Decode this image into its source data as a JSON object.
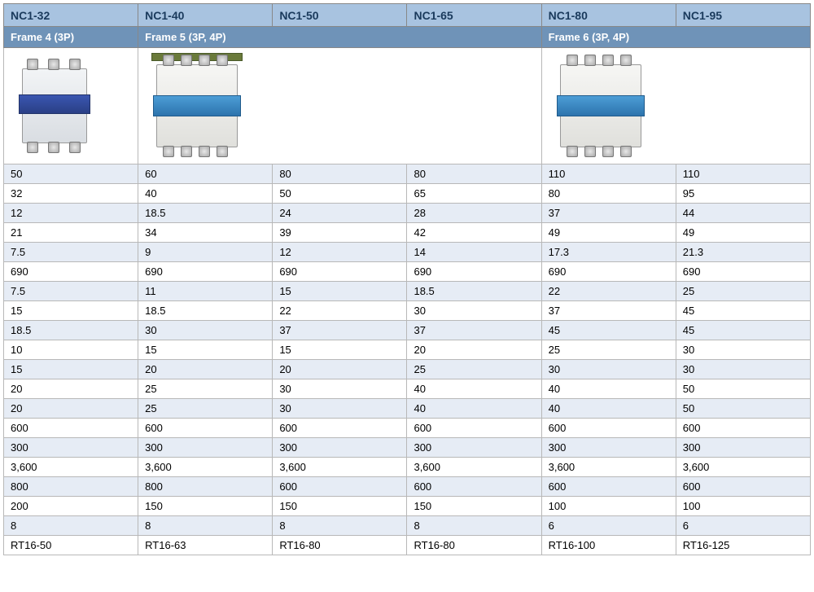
{
  "colors": {
    "model_header_bg": "#a8c3e0",
    "model_header_text": "#1a3a5c",
    "frame_header_bg": "#6f93b8",
    "frame_header_text": "#ffffff",
    "row_even_bg": "#e6ecf5",
    "row_odd_bg": "#ffffff",
    "border": "#b8b8b8"
  },
  "table": {
    "type": "table",
    "columns": 6,
    "font_size_pt": 10,
    "header_font_weight": "bold",
    "models": [
      "NC1-32",
      "NC1-40",
      "NC1-50",
      "NC1-65",
      "NC1-80",
      "NC1-95"
    ],
    "frames": [
      {
        "label": "Frame 4 (3P)",
        "span": 1
      },
      {
        "label": "Frame 5 (3P, 4P)",
        "span": 3
      },
      {
        "label": "Frame 6 (3P, 4P)",
        "span": 2
      }
    ],
    "images": [
      {
        "span": 1,
        "icon": "contactor-small"
      },
      {
        "span": 3,
        "icon": "contactor-medium"
      },
      {
        "span": 2,
        "icon": "contactor-large"
      }
    ],
    "rows": [
      [
        "50",
        "60",
        "80",
        "80",
        "110",
        "110"
      ],
      [
        "32",
        "40",
        "50",
        "65",
        "80",
        "95"
      ],
      [
        "12",
        "18.5",
        "24",
        "28",
        "37",
        "44"
      ],
      [
        "21",
        "34",
        "39",
        "42",
        "49",
        "49"
      ],
      [
        "7.5",
        "9",
        "12",
        "14",
        "17.3",
        "21.3"
      ],
      [
        "690",
        "690",
        "690",
        "690",
        "690",
        "690"
      ],
      [
        "7.5",
        "11",
        "15",
        "18.5",
        "22",
        "25"
      ],
      [
        "15",
        "18.5",
        "22",
        "30",
        "37",
        "45"
      ],
      [
        "18.5",
        "30",
        "37",
        "37",
        "45",
        "45"
      ],
      [
        "10",
        "15",
        "15",
        "20",
        "25",
        "30"
      ],
      [
        "15",
        "20",
        "20",
        "25",
        "30",
        "30"
      ],
      [
        "20",
        "25",
        "30",
        "40",
        "40",
        "50"
      ],
      [
        "20",
        "25",
        "30",
        "40",
        "40",
        "50"
      ],
      [
        "600",
        "600",
        "600",
        "600",
        "600",
        "600"
      ],
      [
        "300",
        "300",
        "300",
        "300",
        "300",
        "300"
      ],
      [
        "3,600",
        "3,600",
        "3,600",
        "3,600",
        "3,600",
        "3,600"
      ],
      [
        "800",
        "800",
        "600",
        "600",
        "600",
        "600"
      ],
      [
        "200",
        "150",
        "150",
        "150",
        "100",
        "100"
      ],
      [
        "8",
        "8",
        "8",
        "8",
        "6",
        "6"
      ],
      [
        "RT16-50",
        "RT16-63",
        "RT16-80",
        "RT16-80",
        "RT16-100",
        "RT16-125"
      ]
    ]
  }
}
